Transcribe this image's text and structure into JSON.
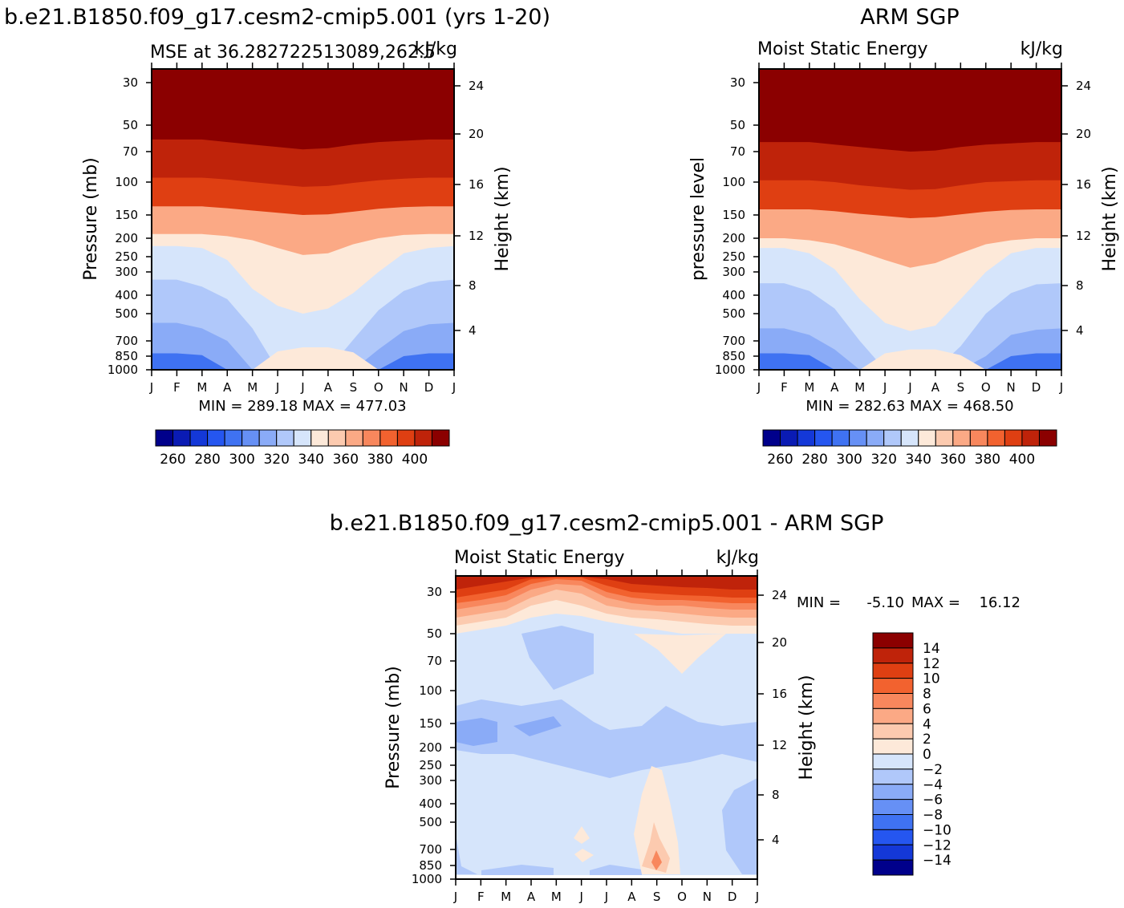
{
  "chart_data": [
    {
      "type": "heatmap",
      "title": "b.e21.B1850.f09_g17.cesm2-cmip5.001 (yrs 1-20)",
      "subtitle_left": "MSE at 36.282722513089,262.5",
      "units": "kJ/kg",
      "stats": "MIN =  289.18 MAX =  477.03",
      "xlabel": "",
      "ylabel": "Pressure (mb)",
      "ylabel_right": "Height (km)",
      "x_ticks": [
        "J",
        "F",
        "M",
        "A",
        "M",
        "J",
        "J",
        "A",
        "S",
        "O",
        "N",
        "D",
        "J"
      ],
      "p_ticks": [
        "30",
        "50",
        "70",
        "100",
        "150",
        "200",
        "250",
        "300",
        "400",
        "500",
        "700",
        "850",
        "1000"
      ],
      "h_ticks": [
        "24",
        "20",
        "16",
        "12",
        "8",
        "4"
      ],
      "colorbar_labels": [
        "260",
        "280",
        "300",
        "320",
        "340",
        "360",
        "380",
        "400"
      ],
      "colorbar_colors": [
        "#00008b",
        "#0a1bb4",
        "#1438d8",
        "#2556f0",
        "#3f72f2",
        "#6690f5",
        "#8aabf7",
        "#b0c8fa",
        "#d6e5fb",
        "#fde9d9",
        "#fccaaf",
        "#fba985",
        "#f8875d",
        "#f2622f",
        "#df3f12",
        "#bf230a",
        "#8b0000"
      ],
      "month_boundaries_pressure": {
        "levels": [
          "400",
          "380",
          "360",
          "340",
          "320",
          "310",
          "300",
          "290"
        ],
        "values": [
          [
            60,
            60,
            60,
            62,
            64,
            66,
            68,
            67,
            64,
            62,
            61,
            60,
            60
          ],
          [
            95,
            95,
            95,
            97,
            100,
            103,
            106,
            105,
            101,
            98,
            96,
            95,
            95
          ],
          [
            135,
            135,
            135,
            138,
            142,
            146,
            150,
            149,
            144,
            139,
            136,
            135,
            135
          ],
          [
            190,
            190,
            190,
            195,
            205,
            225,
            245,
            240,
            215,
            200,
            192,
            190,
            190
          ],
          [
            220,
            220,
            225,
            260,
            370,
            455,
            500,
            470,
            390,
            300,
            240,
            225,
            220
          ],
          [
            330,
            330,
            360,
            420,
            600,
            1000,
            1000,
            1000,
            690,
            480,
            380,
            340,
            330
          ],
          [
            560,
            560,
            600,
            700,
            1000,
            1000,
            1000,
            1000,
            1000,
            780,
            620,
            570,
            560
          ],
          [
            880,
            880,
            900,
            1000,
            1000,
            1000,
            1000,
            1000,
            1000,
            1000,
            920,
            880,
            880
          ]
        ],
        "warm_bump_340": [
          1000,
          1000,
          1000,
          1000,
          1000,
          800,
          760,
          760,
          810,
          1000,
          1000,
          1000,
          1000
        ]
      }
    },
    {
      "type": "heatmap",
      "title": "ARM SGP",
      "subtitle_left": "Moist Static Energy",
      "units": "kJ/kg",
      "stats": "MIN =  282.63 MAX =  468.50",
      "ylabel": "pressure level",
      "ylabel_right": "Height (km)",
      "x_ticks": [
        "J",
        "F",
        "M",
        "A",
        "M",
        "J",
        "J",
        "A",
        "S",
        "O",
        "N",
        "D",
        "J"
      ],
      "p_ticks": [
        "30",
        "50",
        "70",
        "100",
        "150",
        "200",
        "250",
        "300",
        "400",
        "500",
        "700",
        "850",
        "1000"
      ],
      "h_ticks": [
        "24",
        "20",
        "16",
        "12",
        "8",
        "4"
      ],
      "colorbar_labels": [
        "260",
        "280",
        "300",
        "320",
        "340",
        "360",
        "380",
        "400"
      ],
      "colorbar_colors": [
        "#00008b",
        "#0a1bb4",
        "#1438d8",
        "#2556f0",
        "#3f72f2",
        "#6690f5",
        "#8aabf7",
        "#b0c8fa",
        "#d6e5fb",
        "#fde9d9",
        "#fccaaf",
        "#fba985",
        "#f8875d",
        "#f2622f",
        "#df3f12",
        "#bf230a",
        "#8b0000"
      ],
      "month_boundaries_pressure": {
        "levels": [
          "400",
          "380",
          "360",
          "340",
          "320",
          "310",
          "300",
          "290"
        ],
        "values": [
          [
            62,
            62,
            62,
            64,
            66,
            68,
            70,
            69,
            66,
            64,
            63,
            62,
            62
          ],
          [
            98,
            98,
            98,
            100,
            104,
            107,
            110,
            109,
            104,
            100,
            99,
            98,
            98
          ],
          [
            140,
            140,
            140,
            143,
            148,
            152,
            156,
            154,
            149,
            144,
            141,
            140,
            140
          ],
          [
            200,
            200,
            205,
            215,
            235,
            260,
            285,
            270,
            240,
            215,
            205,
            200,
            200
          ],
          [
            225,
            225,
            240,
            290,
            420,
            560,
            620,
            580,
            420,
            300,
            240,
            225,
            225
          ],
          [
            345,
            345,
            380,
            470,
            700,
            1000,
            1000,
            1000,
            750,
            500,
            390,
            350,
            345
          ],
          [
            600,
            600,
            650,
            780,
            1000,
            1000,
            1000,
            1000,
            1000,
            850,
            650,
            610,
            600
          ],
          [
            900,
            900,
            920,
            1000,
            1000,
            1000,
            1000,
            1000,
            1000,
            1000,
            930,
            900,
            900
          ]
        ],
        "warm_bump_340": [
          1000,
          1000,
          1000,
          1000,
          1000,
          820,
          780,
          780,
          840,
          1000,
          1000,
          1000,
          1000
        ]
      }
    },
    {
      "type": "heatmap",
      "title": "b.e21.B1850.f09_g17.cesm2-cmip5.001 - ARM SGP",
      "subtitle_left": "Moist Static Energy",
      "units": "kJ/kg",
      "stats_min_label": "MIN =",
      "stats_min": "-5.10",
      "stats_max_label": "MAX =",
      "stats_max": "16.12",
      "ylabel": "Pressure (mb)",
      "ylabel_right": "Height (km)",
      "x_ticks": [
        "J",
        "F",
        "M",
        "A",
        "M",
        "J",
        "J",
        "A",
        "S",
        "O",
        "N",
        "D",
        "J"
      ],
      "p_ticks": [
        "30",
        "50",
        "70",
        "100",
        "150",
        "200",
        "250",
        "300",
        "400",
        "500",
        "700",
        "850",
        "1000"
      ],
      "h_ticks": [
        "24",
        "20",
        "16",
        "12",
        "8",
        "4"
      ],
      "colorbar_labels": [
        "14",
        "12",
        "10",
        "8",
        "6",
        "4",
        "2",
        "0",
        "−2",
        "−4",
        "−6",
        "−8",
        "−10",
        "−12",
        "−14"
      ],
      "colorbar_colors": [
        "#8b0000",
        "#bf230a",
        "#df3f12",
        "#f2622f",
        "#f8875d",
        "#fba985",
        "#fccaaf",
        "#fde9d9",
        "#d6e5fb",
        "#b0c8fa",
        "#8aabf7",
        "#6690f5",
        "#3f72f2",
        "#2556f0",
        "#1438d8",
        "#00008b"
      ]
    }
  ]
}
